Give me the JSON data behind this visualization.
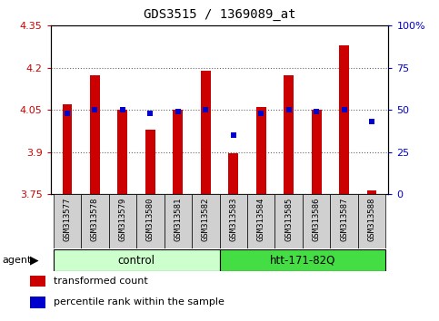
{
  "title": "GDS3515 / 1369089_at",
  "samples": [
    "GSM313577",
    "GSM313578",
    "GSM313579",
    "GSM313580",
    "GSM313581",
    "GSM313582",
    "GSM313583",
    "GSM313584",
    "GSM313585",
    "GSM313586",
    "GSM313587",
    "GSM313588"
  ],
  "transformed_count": [
    4.07,
    4.175,
    4.05,
    3.98,
    4.05,
    4.19,
    3.895,
    4.06,
    4.175,
    4.05,
    4.28,
    3.765
  ],
  "percentile_rank": [
    48,
    50,
    50,
    48,
    49,
    50,
    35,
    48,
    50,
    49,
    50,
    43
  ],
  "ylim_left": [
    3.75,
    4.35
  ],
  "ylim_right": [
    0,
    100
  ],
  "yticks_left": [
    3.75,
    3.9,
    4.05,
    4.2,
    4.35
  ],
  "yticks_right": [
    0,
    25,
    50,
    75,
    100
  ],
  "ytick_labels_left": [
    "3.75",
    "3.9",
    "4.05",
    "4.2",
    "4.35"
  ],
  "ytick_labels_right": [
    "0",
    "25",
    "50",
    "75",
    "100%"
  ],
  "bar_color": "#cc0000",
  "dot_color": "#0000cc",
  "baseline": 3.75,
  "agent_groups": [
    {
      "label": "control",
      "start": 0,
      "end": 5,
      "color": "#ccffcc",
      "dark_color": "#44dd44"
    },
    {
      "label": "htt-171-82Q",
      "start": 6,
      "end": 11,
      "color": "#44dd44",
      "dark_color": "#22bb22"
    }
  ],
  "agent_label": "agent",
  "legend_items": [
    {
      "color": "#cc0000",
      "label": "transformed count"
    },
    {
      "color": "#0000cc",
      "label": "percentile rank within the sample"
    }
  ],
  "grid_color": "#666666",
  "bg_color": "#ffffff",
  "bar_width": 0.35,
  "tick_bg_color": "#d0d0d0"
}
